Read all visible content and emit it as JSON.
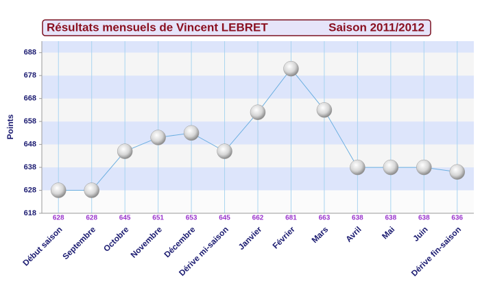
{
  "chart_data": {
    "type": "line",
    "title": "Résultats mensuels de  Vincent LEBRET",
    "subtitle": "Saison 2011/2012",
    "y_label": "Points",
    "categories": [
      "Début saison",
      "Septembre",
      "Octobre",
      "Novembre",
      "Décembre",
      "Dérive mi-saison",
      "Janvier",
      "Février",
      "Mars",
      "Avril",
      "Mai",
      "Juin",
      "Dérive fin-saison"
    ],
    "values": [
      628,
      628,
      645,
      651,
      653,
      645,
      662,
      681,
      663,
      638,
      638,
      638,
      636
    ],
    "color": "#6aaee0",
    "ylim": [
      618,
      693
    ],
    "yticks": [
      618,
      628,
      638,
      648,
      658,
      668,
      678,
      688
    ],
    "grid": true
  }
}
